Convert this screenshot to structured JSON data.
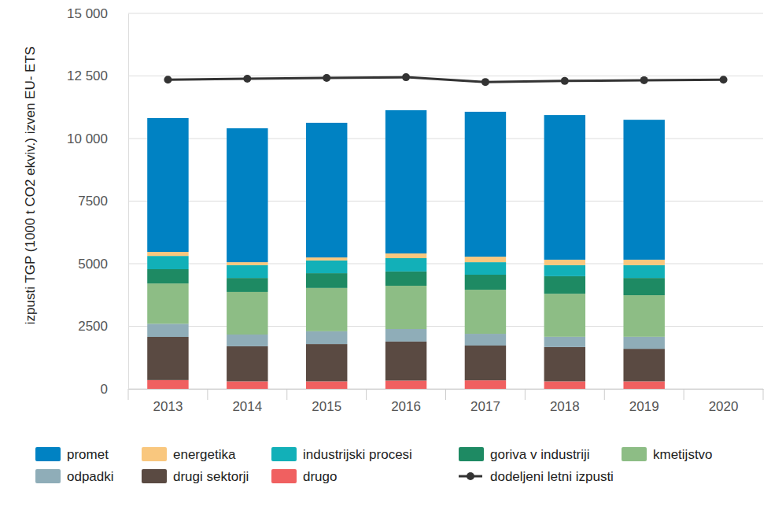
{
  "chart_data": {
    "type": "bar",
    "stacked": true,
    "grid": true,
    "legend": "bottom",
    "y_label": "izpusti TGP (1000 t CO2 ekviv.) izven EU- ETS",
    "categories": [
      "2013",
      "2014",
      "2015",
      "2016",
      "2017",
      "2018",
      "2019",
      "2020"
    ],
    "ylim": [
      0,
      15000
    ],
    "yticks": [
      0,
      2500,
      5000,
      7500,
      {
        "value": 10000,
        "label": "10 000"
      },
      {
        "value": 12500,
        "label": "12 500"
      },
      {
        "value": 15000,
        "label": "15 000"
      }
    ],
    "series": [
      {
        "name": "promet",
        "color": "#0082c3",
        "values": [
          5350,
          5350,
          5380,
          5720,
          5790,
          5780,
          5590,
          null
        ]
      },
      {
        "name": "energetika",
        "color": "#f9c77e",
        "values": [
          160,
          120,
          120,
          190,
          220,
          220,
          220,
          null
        ]
      },
      {
        "name": "industrijski procesi",
        "color": "#12b0b8",
        "values": [
          530,
          510,
          510,
          530,
          500,
          440,
          510,
          null
        ]
      },
      {
        "name": "goriva v industriji",
        "color": "#1e8a63",
        "values": [
          570,
          560,
          590,
          570,
          600,
          700,
          690,
          null
        ]
      },
      {
        "name": "kmetijstvo",
        "color": "#8dbd85",
        "values": [
          1610,
          1700,
          1730,
          1730,
          1760,
          1720,
          1660,
          null
        ]
      },
      {
        "name": "odpadki",
        "color": "#8fadb8",
        "values": [
          525,
          470,
          510,
          500,
          470,
          410,
          480,
          null
        ]
      },
      {
        "name": "drugi sektorji",
        "color": "#5a4a42",
        "values": [
          1725,
          1400,
          1490,
          1560,
          1390,
          1370,
          1300,
          null
        ]
      },
      {
        "name": "drugo",
        "color": "#f06060",
        "values": [
          350,
          300,
          300,
          330,
          340,
          300,
          300,
          null
        ]
      },
      {
        "name": "dodeljeni letni izpusti",
        "type": "line",
        "marker": "circle",
        "color": "#333333",
        "values": [
          12350,
          12390,
          12420,
          12450,
          12260,
          12300,
          12330,
          12350
        ]
      }
    ]
  }
}
